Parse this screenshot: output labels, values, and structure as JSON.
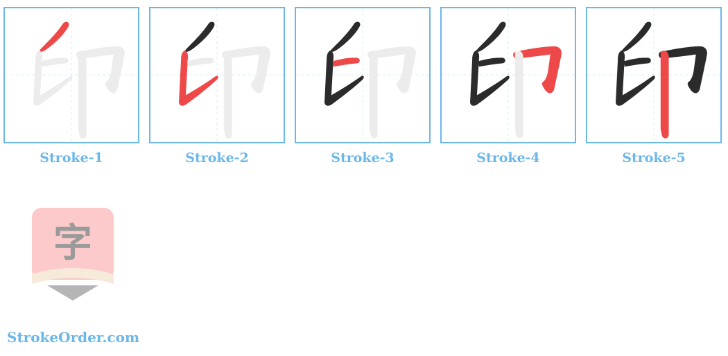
{
  "panels": [
    {
      "label": "Stroke-1",
      "active": 1
    },
    {
      "label": "Stroke-2",
      "active": 2
    },
    {
      "label": "Stroke-3",
      "active": 3
    },
    {
      "label": "Stroke-4",
      "active": 4
    },
    {
      "label": "Stroke-5",
      "active": 5
    }
  ],
  "logo": {
    "glyph": "字"
  },
  "site": {
    "name": "StrokeOrder.com"
  },
  "colors": {
    "border": "#6cb7ea",
    "guide": "#d6edf7",
    "ghost": "#ececec",
    "done": "#2b2b2b",
    "active": "#ee4848",
    "caption": "#6cb7ea"
  }
}
